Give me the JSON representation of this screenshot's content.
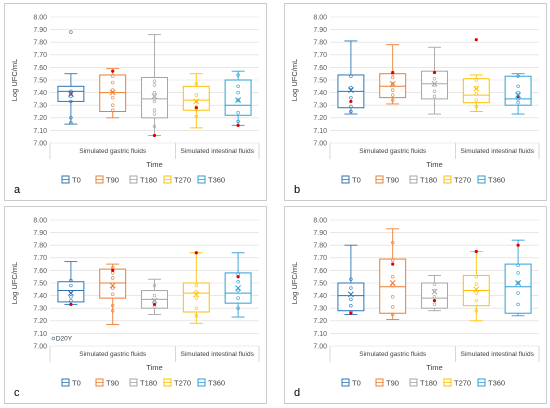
{
  "chart_data": [
    {
      "type": "box",
      "panel_label": "a",
      "ylabel": "Log UFC/mL",
      "xlabel": "Time",
      "ylim": [
        7.0,
        8.0
      ],
      "yticks": [
        "7.00",
        "7.10",
        "7.20",
        "7.30",
        "7.40",
        "7.50",
        "7.60",
        "7.70",
        "7.80",
        "7.90",
        "8.00"
      ],
      "groups": [
        "Simulated gastric fluids",
        "Simulated intestinal fluids"
      ],
      "series": [
        {
          "name": "T0",
          "color": "#2e75b6",
          "group": 0,
          "min": 7.15,
          "q1": 7.33,
          "median": 7.41,
          "q3": 7.45,
          "max": 7.55,
          "mean": 7.39,
          "points": [
            7.88,
            7.41,
            7.37,
            7.33,
            7.2,
            7.16
          ],
          "red": 7.39
        },
        {
          "name": "T90",
          "color": "#ed7d31",
          "group": 0,
          "min": 7.2,
          "q1": 7.25,
          "median": 7.4,
          "q3": 7.54,
          "max": 7.59,
          "mean": 7.4,
          "points": [
            7.53,
            7.48,
            7.42,
            7.36,
            7.3,
            7.26
          ],
          "red": 7.57
        },
        {
          "name": "T180",
          "color": "#a5a5a5",
          "group": 0,
          "min": 7.06,
          "q1": 7.2,
          "median": 7.35,
          "q3": 7.52,
          "max": 7.86,
          "mean": 7.37,
          "points": [
            7.49,
            7.46,
            7.4,
            7.33,
            7.26,
            7.23,
            7.13
          ],
          "red": 7.06
        },
        {
          "name": "T270",
          "color": "#ffc000",
          "group": 1,
          "min": 7.12,
          "q1": 7.26,
          "median": 7.34,
          "q3": 7.45,
          "max": 7.55,
          "mean": 7.33,
          "points": [
            7.47,
            7.38,
            7.33,
            7.29,
            7.21
          ],
          "red": 7.28
        },
        {
          "name": "T360",
          "color": "#2e9fd8",
          "group": 1,
          "min": 7.14,
          "q1": 7.22,
          "median": 7.3,
          "q3": 7.5,
          "max": 7.57,
          "mean": 7.34,
          "points": [
            7.54,
            7.45,
            7.4,
            7.34,
            7.24,
            7.17
          ],
          "red": 7.14
        }
      ]
    },
    {
      "type": "box",
      "panel_label": "b",
      "ylabel": "Log UFC/mL",
      "xlabel": "Time",
      "ylim": [
        7.0,
        8.0
      ],
      "yticks": [
        "7.00",
        "7.10",
        "7.20",
        "7.30",
        "7.40",
        "7.50",
        "7.60",
        "7.70",
        "7.80",
        "7.90",
        "8.00"
      ],
      "groups": [
        "Simulated gastric fluids",
        "Simulated intestinal fluids"
      ],
      "series": [
        {
          "name": "T0",
          "color": "#2e75b6",
          "group": 0,
          "min": 7.23,
          "q1": 7.28,
          "median": 7.41,
          "q3": 7.54,
          "max": 7.81,
          "mean": 7.42,
          "points": [
            7.53,
            7.44,
            7.36,
            7.29,
            7.25
          ],
          "red": 7.33
        },
        {
          "name": "T90",
          "color": "#ed7d31",
          "group": 0,
          "min": 7.31,
          "q1": 7.36,
          "median": 7.45,
          "q3": 7.55,
          "max": 7.78,
          "mean": 7.47,
          "points": [
            7.55,
            7.52,
            7.47,
            7.42,
            7.38,
            7.34
          ],
          "red": 7.56
        },
        {
          "name": "T180",
          "color": "#a5a5a5",
          "group": 0,
          "min": 7.23,
          "q1": 7.35,
          "median": 7.47,
          "q3": 7.57,
          "max": 7.76,
          "mean": 7.47,
          "points": [
            7.56,
            7.51,
            7.46,
            7.41,
            7.37
          ],
          "red": 7.56
        },
        {
          "name": "T270",
          "color": "#ffc000",
          "group": 1,
          "min": 7.25,
          "q1": 7.32,
          "median": 7.38,
          "q3": 7.51,
          "max": 7.54,
          "mean": 7.43,
          "points": [
            7.5,
            7.44,
            7.39,
            7.34,
            7.29
          ],
          "red": 7.82
        },
        {
          "name": "T360",
          "color": "#2e9fd8",
          "group": 1,
          "min": 7.23,
          "q1": 7.3,
          "median": 7.35,
          "q3": 7.53,
          "max": 7.55,
          "mean": 7.38,
          "points": [
            7.53,
            7.45,
            7.4,
            7.35,
            7.32
          ],
          "red": 7.37
        }
      ]
    },
    {
      "type": "box",
      "panel_label": "c",
      "ylabel": "Log UFC/mL",
      "xlabel": "Time",
      "ylim": [
        7.0,
        8.0
      ],
      "yticks": [
        "7.00",
        "7.10",
        "7.20",
        "7.30",
        "7.40",
        "7.50",
        "7.60",
        "7.70",
        "7.80",
        "7.90",
        "8.00"
      ],
      "groups": [
        "Simulated gastric fluids",
        "Simulated intestinal fluids"
      ],
      "annotation": {
        "text": "D20Y",
        "series": 0,
        "value": 7.06
      },
      "series": [
        {
          "name": "T0",
          "color": "#2e75b6",
          "group": 0,
          "min": 7.33,
          "q1": 7.35,
          "median": 7.44,
          "q3": 7.51,
          "max": 7.67,
          "mean": 7.42,
          "points": [
            7.52,
            7.48,
            7.43,
            7.39,
            7.36
          ],
          "red": 7.33
        },
        {
          "name": "T90",
          "color": "#ed7d31",
          "group": 0,
          "min": 7.17,
          "q1": 7.38,
          "median": 7.5,
          "q3": 7.61,
          "max": 7.65,
          "mean": 7.48,
          "points": [
            7.62,
            7.58,
            7.54,
            7.46,
            7.41,
            7.32,
            7.28
          ],
          "red": 7.6
        },
        {
          "name": "T180",
          "color": "#a5a5a5",
          "group": 0,
          "min": 7.25,
          "q1": 7.3,
          "median": 7.37,
          "q3": 7.44,
          "max": 7.53,
          "mean": 7.36,
          "points": [
            7.48,
            7.4,
            7.35,
            7.31
          ],
          "red": 7.33
        },
        {
          "name": "T270",
          "color": "#ffc000",
          "group": 1,
          "min": 7.18,
          "q1": 7.27,
          "median": 7.42,
          "q3": 7.5,
          "max": 7.74,
          "mean": 7.41,
          "points": [
            7.48,
            7.43,
            7.38,
            7.3,
            7.24
          ],
          "red": 7.74
        },
        {
          "name": "T360",
          "color": "#2e9fd8",
          "group": 1,
          "min": 7.23,
          "q1": 7.34,
          "median": 7.42,
          "q3": 7.58,
          "max": 7.74,
          "mean": 7.46,
          "points": [
            7.57,
            7.51,
            7.44,
            7.38,
            7.3
          ],
          "red": 7.55
        }
      ]
    },
    {
      "type": "box",
      "panel_label": "d",
      "ylabel": "Log UFC/mL",
      "xlabel": "Time",
      "ylim": [
        7.0,
        8.0
      ],
      "yticks": [
        "7.00",
        "7.10",
        "7.20",
        "7.30",
        "7.40",
        "7.50",
        "7.60",
        "7.70",
        "7.80",
        "7.90",
        "8.00"
      ],
      "groups": [
        "Simulated gastric fluids",
        "Simulated intestinal fluids"
      ],
      "series": [
        {
          "name": "T0",
          "color": "#2e75b6",
          "group": 0,
          "min": 7.25,
          "q1": 7.28,
          "median": 7.4,
          "q3": 7.5,
          "max": 7.8,
          "mean": 7.41,
          "points": [
            7.53,
            7.46,
            7.37,
            7.32,
            7.27
          ],
          "red": 7.26
        },
        {
          "name": "T90",
          "color": "#ed7d31",
          "group": 0,
          "min": 7.21,
          "q1": 7.26,
          "median": 7.47,
          "q3": 7.69,
          "max": 7.93,
          "mean": 7.5,
          "points": [
            7.82,
            7.68,
            7.55,
            7.48,
            7.39,
            7.31,
            7.25
          ],
          "red": 7.65
        },
        {
          "name": "T180",
          "color": "#a5a5a5",
          "group": 0,
          "min": 7.28,
          "q1": 7.3,
          "median": 7.38,
          "q3": 7.5,
          "max": 7.56,
          "mean": 7.43,
          "points": [
            7.49,
            7.44,
            7.39,
            7.33
          ],
          "red": 7.36
        },
        {
          "name": "T270",
          "color": "#ffc000",
          "group": 1,
          "min": 7.2,
          "q1": 7.32,
          "median": 7.44,
          "q3": 7.56,
          "max": 7.75,
          "mean": 7.45,
          "points": [
            7.55,
            7.49,
            7.42,
            7.36,
            7.28
          ],
          "red": 7.75
        },
        {
          "name": "T360",
          "color": "#2e9fd8",
          "group": 1,
          "min": 7.24,
          "q1": 7.26,
          "median": 7.47,
          "q3": 7.65,
          "max": 7.84,
          "mean": 7.5,
          "points": [
            7.64,
            7.58,
            7.5,
            7.42,
            7.33
          ],
          "red": 7.8
        }
      ]
    }
  ]
}
